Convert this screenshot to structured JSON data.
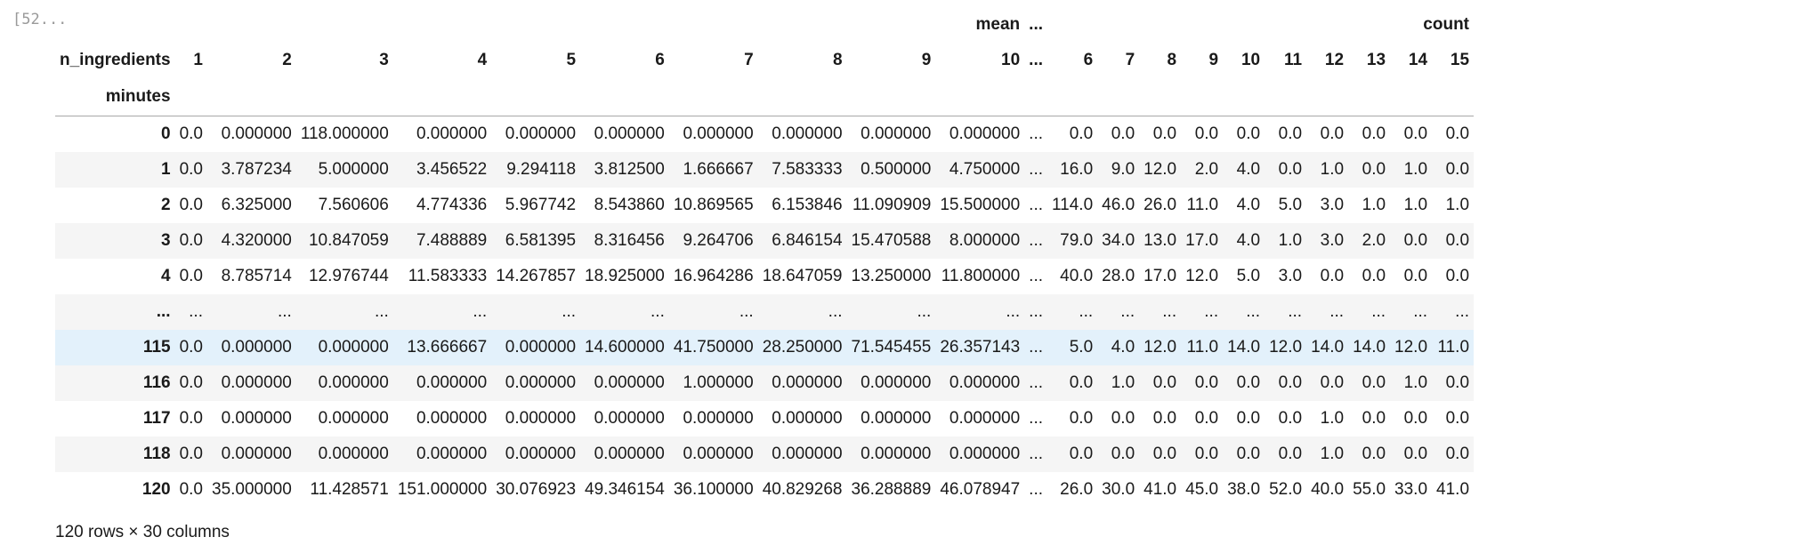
{
  "cell": {
    "prompt": "[52..."
  },
  "table": {
    "top_header": {
      "mean_label": "mean",
      "ellipsis": "...",
      "count_label": "count"
    },
    "columns_name": "n_ingredients",
    "index_name": "minutes",
    "columns": [
      "1",
      "2",
      "3",
      "4",
      "5",
      "6",
      "7",
      "8",
      "9",
      "10",
      "...",
      "6",
      "7",
      "8",
      "9",
      "10",
      "11",
      "12",
      "13",
      "14",
      "15"
    ],
    "rows": [
      {
        "index": "0",
        "cells": [
          "0.0",
          "0.000000",
          "118.000000",
          "0.000000",
          "0.000000",
          "0.000000",
          "0.000000",
          "0.000000",
          "0.000000",
          "0.000000",
          "...",
          "0.0",
          "0.0",
          "0.0",
          "0.0",
          "0.0",
          "0.0",
          "0.0",
          "0.0",
          "0.0",
          "0.0"
        ]
      },
      {
        "index": "1",
        "cells": [
          "0.0",
          "3.787234",
          "5.000000",
          "3.456522",
          "9.294118",
          "3.812500",
          "1.666667",
          "7.583333",
          "0.500000",
          "4.750000",
          "...",
          "16.0",
          "9.0",
          "12.0",
          "2.0",
          "4.0",
          "0.0",
          "1.0",
          "0.0",
          "1.0",
          "0.0"
        ]
      },
      {
        "index": "2",
        "cells": [
          "0.0",
          "6.325000",
          "7.560606",
          "4.774336",
          "5.967742",
          "8.543860",
          "10.869565",
          "6.153846",
          "11.090909",
          "15.500000",
          "...",
          "114.0",
          "46.0",
          "26.0",
          "11.0",
          "4.0",
          "5.0",
          "3.0",
          "1.0",
          "1.0",
          "1.0"
        ]
      },
      {
        "index": "3",
        "cells": [
          "0.0",
          "4.320000",
          "10.847059",
          "7.488889",
          "6.581395",
          "8.316456",
          "9.264706",
          "6.846154",
          "15.470588",
          "8.000000",
          "...",
          "79.0",
          "34.0",
          "13.0",
          "17.0",
          "4.0",
          "1.0",
          "3.0",
          "2.0",
          "0.0",
          "0.0"
        ]
      },
      {
        "index": "4",
        "cells": [
          "0.0",
          "8.785714",
          "12.976744",
          "11.583333",
          "14.267857",
          "18.925000",
          "16.964286",
          "18.647059",
          "13.250000",
          "11.800000",
          "...",
          "40.0",
          "28.0",
          "17.0",
          "12.0",
          "5.0",
          "3.0",
          "0.0",
          "0.0",
          "0.0",
          "0.0"
        ]
      },
      {
        "index": "...",
        "cells": [
          "...",
          "...",
          "...",
          "...",
          "...",
          "...",
          "...",
          "...",
          "...",
          "...",
          "...",
          "...",
          "...",
          "...",
          "...",
          "...",
          "...",
          "...",
          "...",
          "...",
          "..."
        ]
      },
      {
        "index": "115",
        "cells": [
          "0.0",
          "0.000000",
          "0.000000",
          "13.666667",
          "0.000000",
          "14.600000",
          "41.750000",
          "28.250000",
          "71.545455",
          "26.357143",
          "...",
          "5.0",
          "4.0",
          "12.0",
          "11.0",
          "14.0",
          "12.0",
          "14.0",
          "14.0",
          "12.0",
          "11.0"
        ]
      },
      {
        "index": "116",
        "cells": [
          "0.0",
          "0.000000",
          "0.000000",
          "0.000000",
          "0.000000",
          "0.000000",
          "1.000000",
          "0.000000",
          "0.000000",
          "0.000000",
          "...",
          "0.0",
          "1.0",
          "0.0",
          "0.0",
          "0.0",
          "0.0",
          "0.0",
          "0.0",
          "1.0",
          "0.0"
        ]
      },
      {
        "index": "117",
        "cells": [
          "0.0",
          "0.000000",
          "0.000000",
          "0.000000",
          "0.000000",
          "0.000000",
          "0.000000",
          "0.000000",
          "0.000000",
          "0.000000",
          "...",
          "0.0",
          "0.0",
          "0.0",
          "0.0",
          "0.0",
          "0.0",
          "1.0",
          "0.0",
          "0.0",
          "0.0"
        ]
      },
      {
        "index": "118",
        "cells": [
          "0.0",
          "0.000000",
          "0.000000",
          "0.000000",
          "0.000000",
          "0.000000",
          "0.000000",
          "0.000000",
          "0.000000",
          "0.000000",
          "...",
          "0.0",
          "0.0",
          "0.0",
          "0.0",
          "0.0",
          "0.0",
          "1.0",
          "0.0",
          "0.0",
          "0.0"
        ]
      },
      {
        "index": "120",
        "cells": [
          "0.0",
          "35.000000",
          "11.428571",
          "151.000000",
          "30.076923",
          "49.346154",
          "36.100000",
          "40.829268",
          "36.288889",
          "46.078947",
          "...",
          "26.0",
          "30.0",
          "41.0",
          "45.0",
          "38.0",
          "52.0",
          "40.0",
          "55.0",
          "33.0",
          "41.0"
        ]
      }
    ],
    "highlighted_row": "115"
  },
  "footer": {
    "shape": "120 rows × 30 columns"
  },
  "colors": {
    "stripe": "#f5f5f5",
    "hover": "#e3f1fb",
    "rule": "#a8a8a8",
    "prompt": "#9a9a9a"
  }
}
